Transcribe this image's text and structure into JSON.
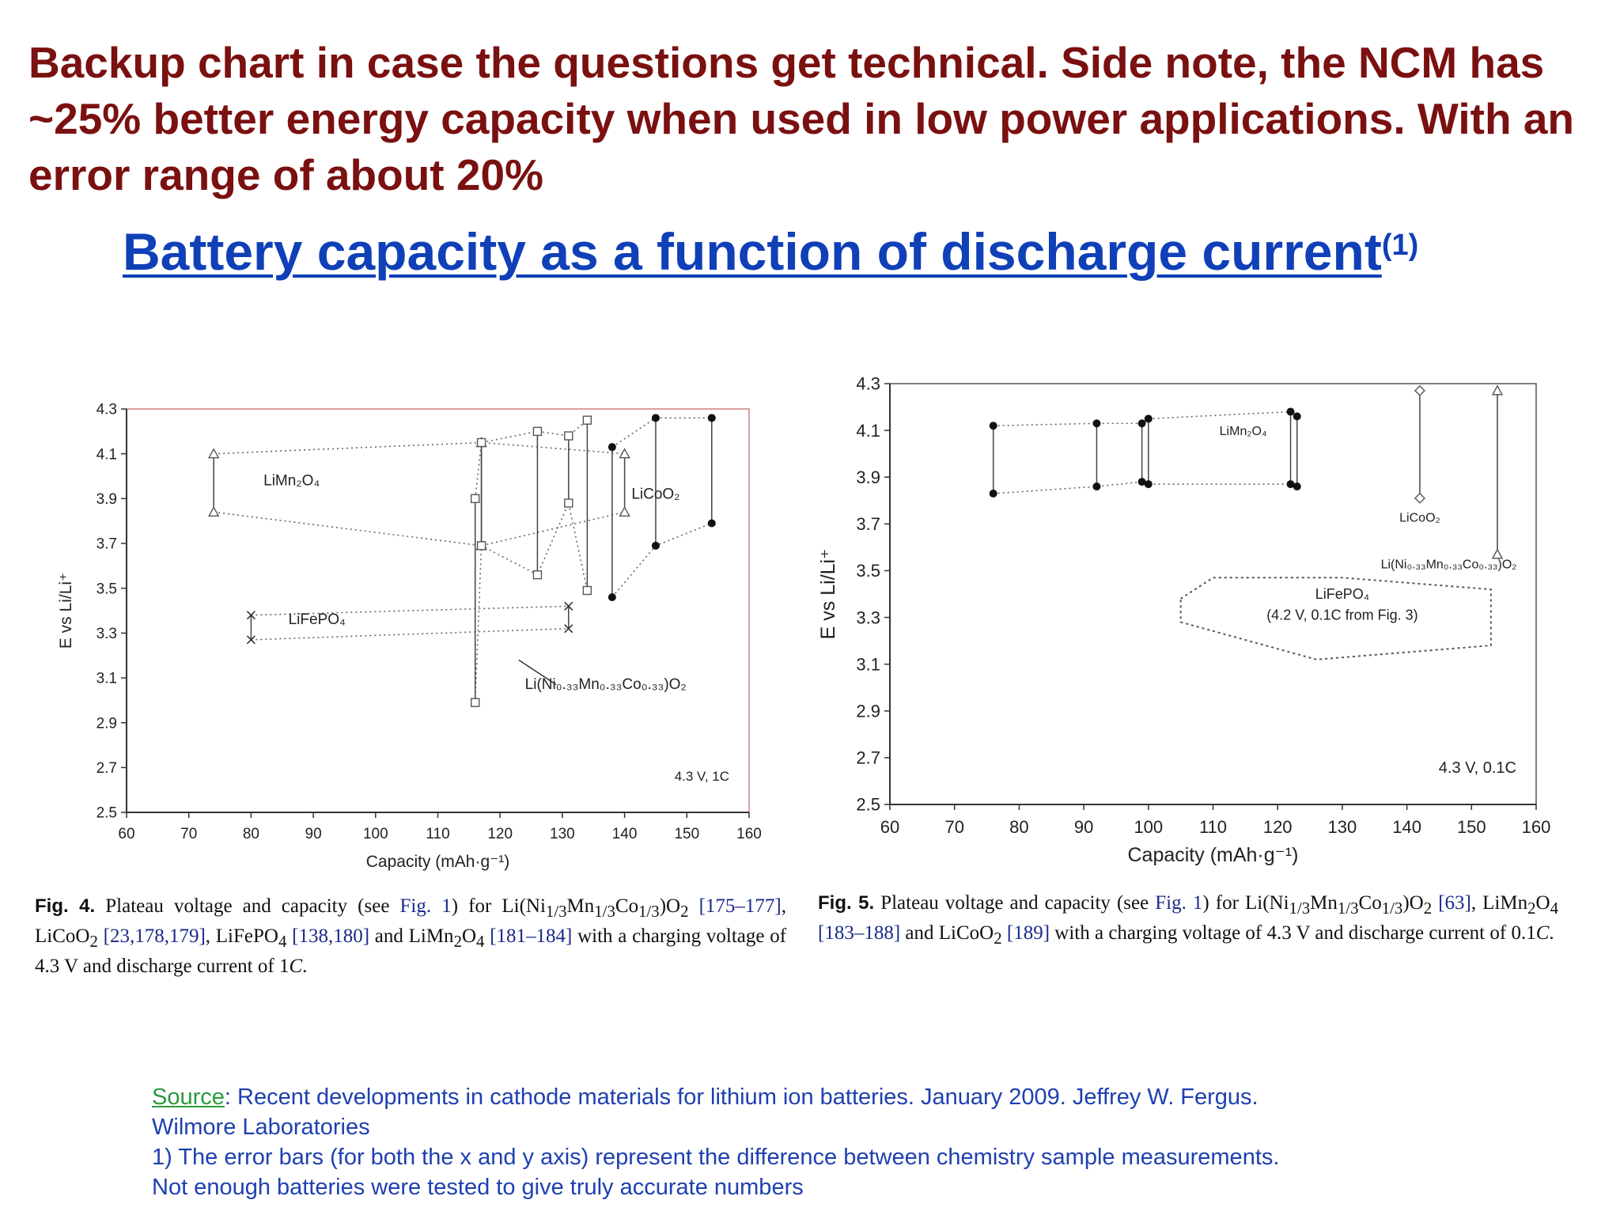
{
  "note": "Backup chart in case the questions get technical. Side note, the NCM has ~25% better energy capacity when used in low power applications. With an error range of about 20%",
  "title": {
    "main": "Battery capacity as a function of discharge current",
    "sup": "(1)"
  },
  "fig4_caption": {
    "label": "Fig. 4.",
    "text_a": "Plateau voltage and capacity (see ",
    "fig_ref": "Fig. 1",
    "text_b": ") for Li(Ni",
    "ni": "1/3",
    "mn_t": "Mn",
    "mn": "1/3",
    "co_t": "Co",
    "co": "1/3",
    "o2": ")O",
    "o2s": "2",
    "r1": "[175–177]",
    "t2": ", LiCoO",
    "t2s": "2",
    "r2": "[23,178,179]",
    "t3": ", LiFePO",
    "t3s": "4",
    "r3": "[138,180]",
    "t4": " and LiMn",
    "t4s": "2",
    "t4b": "O",
    "t4c": "4",
    "r4": "[181–184]",
    "t5": " with a charging voltage of 4.3 V and discharge current of 1",
    "t5i": "C",
    "t5e": "."
  },
  "fig5_caption": {
    "label": "Fig. 5.",
    "text_a": "Plateau voltage and capacity (see ",
    "fig_ref": "Fig. 1",
    "text_b": ") for Li(Ni",
    "ni": "1/3",
    "mn_t": "Mn",
    "mn": "1/3",
    "co_t": "Co",
    "co": "1/3",
    "o2": ")O",
    "o2s": "2",
    "r1": "[63]",
    "t2": ", LiMn",
    "t2s": "2",
    "t2b": "O",
    "t2c": "4",
    "r2": "[183–188]",
    "t3": " and LiCoO",
    "t3s": "2",
    "r3": "[189]",
    "t4": " with a charging voltage of 4.3 V and discharge current of 0.1",
    "t4i": "C",
    "t4e": "."
  },
  "source": {
    "label": "Source",
    "text": ": Recent developments in cathode materials for lithium ion batteries. January 2009. Jeffrey W. Fergus. Wilmore Laboratories",
    "footnote": "1) The error bars (for both the x and y axis) represent the difference between chemistry sample measurements. Not enough batteries were tested to give truly accurate numbers"
  },
  "colors": {
    "note": "#7a1010",
    "title": "#1040b8",
    "source": "#1e40b0",
    "source_link": "#2a9a3a",
    "fig4_frame": "#d08080"
  },
  "chart_data": [
    {
      "type": "scatter",
      "subtype": "range-plot",
      "xlabel": "Capacity (mAh·g⁻¹)",
      "ylabel": "E vs Li/Li⁺",
      "xlim": [
        60,
        160
      ],
      "ylim": [
        2.5,
        4.3
      ],
      "xticks": [
        "60",
        "70",
        "80",
        "90",
        "100",
        "110",
        "120",
        "130",
        "140",
        "150",
        "160"
      ],
      "yticks": [
        "2.5",
        "2.7",
        "2.9",
        "3.1",
        "3.3",
        "3.5",
        "3.7",
        "3.9",
        "4.1",
        "4.3"
      ],
      "annotation": "4.3 V, 1C",
      "series": [
        {
          "name": "LiMn₂O₄",
          "marker": "triangle-open",
          "points": [
            [
              74,
              4.1
            ],
            [
              74,
              3.84
            ],
            [
              117,
              4.15
            ],
            [
              117,
              3.69
            ],
            [
              140,
              4.1
            ],
            [
              140,
              3.84
            ]
          ]
        },
        {
          "name": "LiFePO₄",
          "marker": "x",
          "points": [
            [
              80,
              3.38
            ],
            [
              80,
              3.27
            ],
            [
              131,
              3.42
            ],
            [
              131,
              3.32
            ]
          ]
        },
        {
          "name": "Li(Ni₀.₃₃Mn₀.₃₃Co₀.₃₃)O₂",
          "marker": "square-open",
          "points": [
            [
              116,
              3.9
            ],
            [
              116,
              2.99
            ],
            [
              117,
              4.15
            ],
            [
              117,
              3.69
            ],
            [
              126,
              4.2
            ],
            [
              126,
              3.56
            ],
            [
              131,
              4.18
            ],
            [
              131,
              3.88
            ],
            [
              134,
              4.25
            ],
            [
              134,
              3.49
            ]
          ]
        },
        {
          "name": "LiCoO₂",
          "marker": "filled",
          "points": [
            [
              138,
              4.13
            ],
            [
              138,
              3.46
            ],
            [
              145,
              4.26
            ],
            [
              145,
              3.69
            ],
            [
              154,
              4.26
            ],
            [
              154,
              3.79
            ]
          ]
        }
      ]
    },
    {
      "type": "scatter",
      "subtype": "range-plot",
      "xlabel": "Capacity (mAh·g⁻¹)",
      "ylabel": "E vs Li/Li⁺",
      "xlim": [
        60,
        160
      ],
      "ylim": [
        2.5,
        4.3
      ],
      "xticks": [
        "60",
        "70",
        "80",
        "90",
        "100",
        "110",
        "120",
        "130",
        "140",
        "150",
        "160"
      ],
      "yticks": [
        "2.5",
        "2.7",
        "2.9",
        "3.1",
        "3.3",
        "3.5",
        "3.7",
        "3.9",
        "4.1",
        "4.3"
      ],
      "annotation": "4.3 V, 0.1C",
      "series": [
        {
          "name": "LiMn₂O₄",
          "marker": "filled",
          "points": [
            [
              76,
              4.12
            ],
            [
              76,
              3.83
            ],
            [
              92,
              4.13
            ],
            [
              92,
              3.86
            ],
            [
              99,
              4.13
            ],
            [
              99,
              3.88
            ],
            [
              100,
              4.15
            ],
            [
              100,
              3.87
            ],
            [
              122,
              4.18
            ],
            [
              122,
              3.87
            ],
            [
              123,
              4.16
            ],
            [
              123,
              3.86
            ]
          ]
        },
        {
          "name": "LiCoO₂",
          "marker": "diamond-open",
          "points": [
            [
              142,
              4.27
            ],
            [
              142,
              3.81
            ]
          ]
        },
        {
          "name": "Li(Ni₀.₃₃Mn₀.₃₃Co₀.₃₃)O₂",
          "marker": "triangle-open",
          "points": [
            [
              154,
              4.27
            ],
            [
              154,
              3.57
            ]
          ]
        },
        {
          "name": "LiFePO₄",
          "label_sub": "(4.2 V, 0.1C from Fig. 3)",
          "marker": "region",
          "points": [
            [
              105,
              3.38
            ],
            [
              110,
              3.47
            ],
            [
              130,
              3.47
            ],
            [
              153,
              3.42
            ],
            [
              153,
              3.18
            ],
            [
              126,
              3.12
            ],
            [
              105,
              3.28
            ]
          ]
        }
      ]
    }
  ]
}
